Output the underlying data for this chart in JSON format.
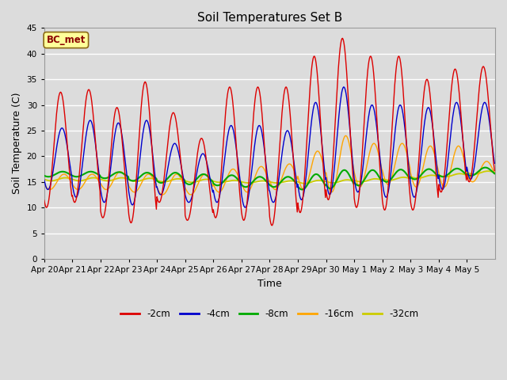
{
  "title": "Soil Temperatures Set B",
  "xlabel": "Time",
  "ylabel": "Soil Temperature (C)",
  "ylim": [
    0,
    45
  ],
  "yticks": [
    0,
    5,
    10,
    15,
    20,
    25,
    30,
    35,
    40,
    45
  ],
  "annotation": "BC_met",
  "annotation_color": "#8B0000",
  "annotation_bg": "#FFFF99",
  "annotation_edge": "#8B6914",
  "series_colors": {
    "-2cm": "#DD0000",
    "-4cm": "#0000CC",
    "-8cm": "#00AA00",
    "-16cm": "#FFA500",
    "-32cm": "#CCCC00"
  },
  "fig_facecolor": "#DCDCDC",
  "plot_facecolor": "#DCDCDC",
  "grid_color": "#FFFFFF",
  "days": [
    "Apr 20",
    "Apr 21",
    "Apr 22",
    "Apr 23",
    "Apr 24",
    "Apr 25",
    "Apr 26",
    "Apr 27",
    "Apr 28",
    "Apr 29",
    "Apr 30",
    "May 1",
    "May 2",
    "May 3",
    "May 4",
    "May 5"
  ],
  "n_points_per_day": 48,
  "depth_2cm_peaks": [
    32.5,
    33.0,
    29.5,
    34.5,
    28.5,
    23.5,
    33.5,
    33.5,
    33.5,
    39.5,
    43.0,
    39.5,
    39.5,
    35.0,
    37.0,
    37.5
  ],
  "depth_2cm_troughs": [
    10.0,
    11.0,
    8.0,
    7.0,
    11.0,
    7.5,
    8.0,
    7.5,
    6.5,
    9.0,
    11.5,
    10.0,
    9.5,
    9.5,
    13.0,
    15.0
  ],
  "depth_4cm_peaks": [
    25.5,
    27.0,
    26.5,
    27.0,
    22.5,
    20.5,
    26.0,
    26.0,
    25.0,
    30.5,
    33.5,
    30.0,
    30.0,
    29.5,
    30.5,
    30.5
  ],
  "depth_4cm_troughs": [
    13.5,
    12.0,
    11.0,
    10.5,
    12.5,
    11.0,
    11.0,
    10.0,
    11.0,
    11.5,
    12.5,
    13.0,
    12.0,
    12.0,
    13.5,
    15.5
  ],
  "depth_8cm_base": [
    16.5,
    16.5,
    16.3,
    16.0,
    15.8,
    15.5,
    15.3,
    15.0,
    15.0,
    15.0,
    15.5,
    15.8,
    16.2,
    16.5,
    16.8,
    17.0
  ],
  "depth_8cm_amp": [
    0.5,
    0.5,
    0.6,
    0.8,
    1.0,
    1.0,
    1.0,
    1.0,
    1.0,
    1.5,
    1.8,
    1.5,
    1.2,
    1.0,
    0.8,
    0.8
  ],
  "depth_16cm_peaks": [
    16.5,
    16.5,
    17.0,
    16.5,
    16.5,
    16.5,
    17.5,
    18.0,
    18.5,
    21.0,
    24.0,
    22.5,
    22.5,
    22.0,
    22.0,
    19.0
  ],
  "depth_16cm_troughs": [
    13.5,
    13.5,
    13.5,
    13.0,
    12.5,
    12.5,
    13.0,
    13.0,
    13.5,
    13.5,
    13.0,
    14.0,
    14.5,
    14.0,
    14.0,
    15.0
  ],
  "depth_32cm_base": [
    15.5,
    15.5,
    15.5,
    15.4,
    15.3,
    15.2,
    15.1,
    15.0,
    15.0,
    15.0,
    15.1,
    15.3,
    15.6,
    16.0,
    16.3,
    16.8
  ],
  "depth_32cm_amp": [
    0.3,
    0.3,
    0.3,
    0.3,
    0.3,
    0.3,
    0.2,
    0.2,
    0.2,
    0.3,
    0.3,
    0.3,
    0.3,
    0.3,
    0.3,
    0.3
  ]
}
